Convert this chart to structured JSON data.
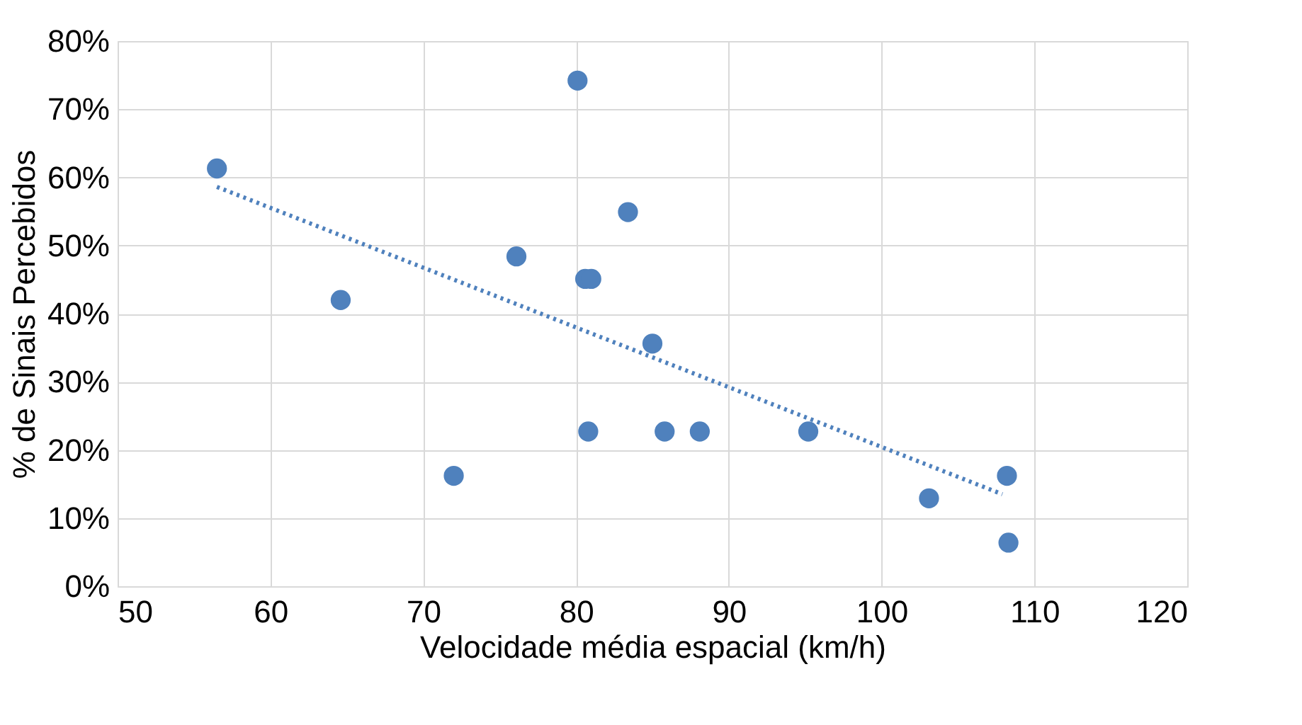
{
  "chart_data": {
    "type": "scatter",
    "xlabel": "Velocidade média espacial (km/h)",
    "ylabel": "% de Sinais Percebidos",
    "xlim": [
      50,
      120
    ],
    "xticks": [
      50,
      60,
      70,
      80,
      90,
      100,
      110,
      120
    ],
    "ylim": [
      0,
      80
    ],
    "yticks": [
      {
        "value": 0,
        "label": "0%"
      },
      {
        "value": 10,
        "label": "10%"
      },
      {
        "value": 20,
        "label": "20%"
      },
      {
        "value": 30,
        "label": "30%"
      },
      {
        "value": 40,
        "label": "40%"
      },
      {
        "value": 50,
        "label": "50%"
      },
      {
        "value": 60,
        "label": "60%"
      },
      {
        "value": 70,
        "label": "70%"
      },
      {
        "value": 80,
        "label": "80%"
      }
    ],
    "grid": true,
    "marker": "circle",
    "series": [
      {
        "color": "#4f81bd",
        "x": [
          56.5,
          64.6,
          72.0,
          76.1,
          80.1,
          80.6,
          81.0,
          80.8,
          83.4,
          85.0,
          85.8,
          88.1,
          95.2,
          103.1,
          108.2,
          108.3
        ],
        "values": [
          61.3,
          42.0,
          16.2,
          48.4,
          74.2,
          45.1,
          45.1,
          22.7,
          54.9,
          35.6,
          22.7,
          22.7,
          22.7,
          12.9,
          16.2,
          6.4
        ]
      },
      {
        "type": "line",
        "color": "#4f81bd",
        "line_style": "dotted",
        "marker": "none",
        "x": [
          56.5,
          107.9
        ],
        "values": [
          58.6,
          13.5
        ]
      }
    ]
  }
}
